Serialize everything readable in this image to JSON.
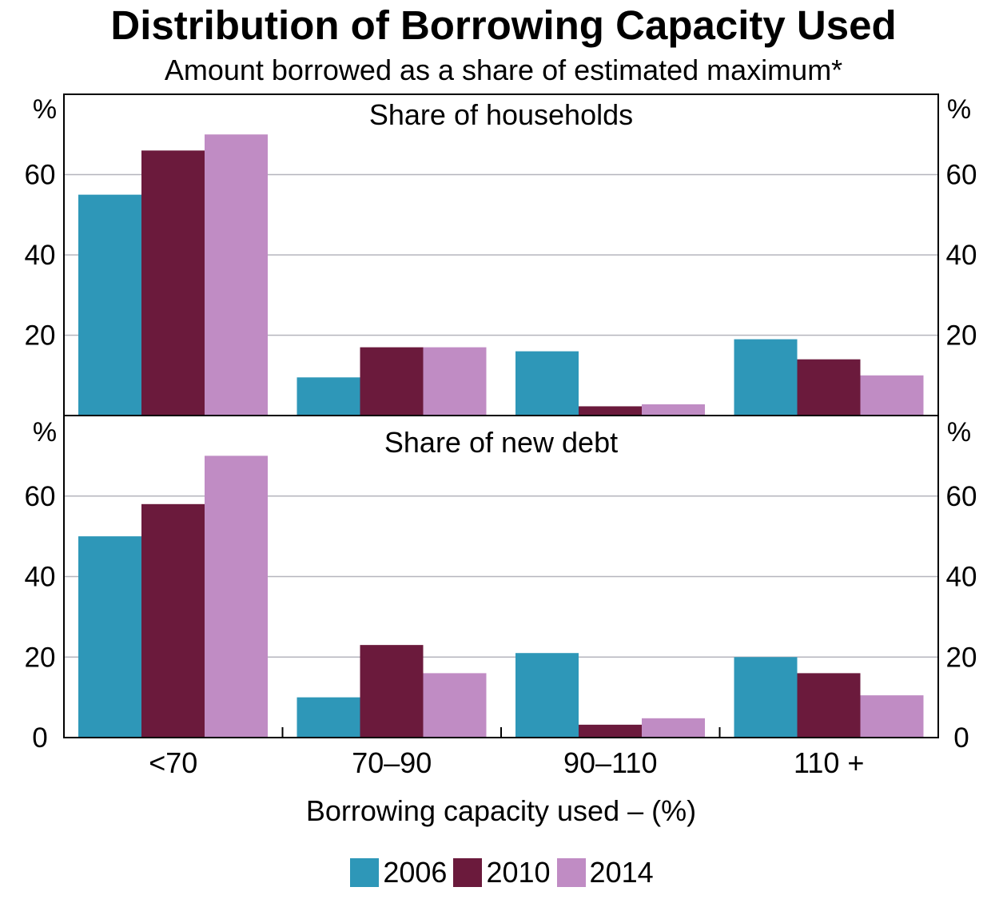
{
  "chart_data": {
    "type": "bar",
    "title": "Distribution of Borrowing Capacity Used",
    "subtitle": "Amount borrowed as a share of estimated maximum*",
    "xlabel": "Borrowing capacity used – (%)",
    "categories": [
      "<70",
      "70–90",
      "90–110",
      "110 +"
    ],
    "colors": {
      "2006": "#2e97b8",
      "2010": "#6b1a3c",
      "2014": "#c08cc4"
    },
    "grid": true,
    "legend_position": "bottom",
    "panels": [
      {
        "name": "Share of households",
        "ylabel": "%",
        "ylim": [
          0,
          80
        ],
        "yticks": [
          "20",
          "40",
          "60"
        ],
        "series": [
          {
            "name": "2006",
            "values": [
              55,
              9.5,
              16,
              19
            ]
          },
          {
            "name": "2010",
            "values": [
              66,
              17,
              2.3,
              14
            ]
          },
          {
            "name": "2014",
            "values": [
              70,
              17,
              2.8,
              10
            ]
          }
        ]
      },
      {
        "name": "Share of new debt",
        "ylabel": "%",
        "ylim": [
          0,
          80
        ],
        "yticks": [
          "0",
          "20",
          "40",
          "60"
        ],
        "series": [
          {
            "name": "2006",
            "values": [
              50,
              10,
              21,
              20
            ]
          },
          {
            "name": "2010",
            "values": [
              58,
              23,
              3.2,
              16
            ]
          },
          {
            "name": "2014",
            "values": [
              70,
              16,
              4.8,
              10.5
            ]
          }
        ]
      }
    ]
  }
}
